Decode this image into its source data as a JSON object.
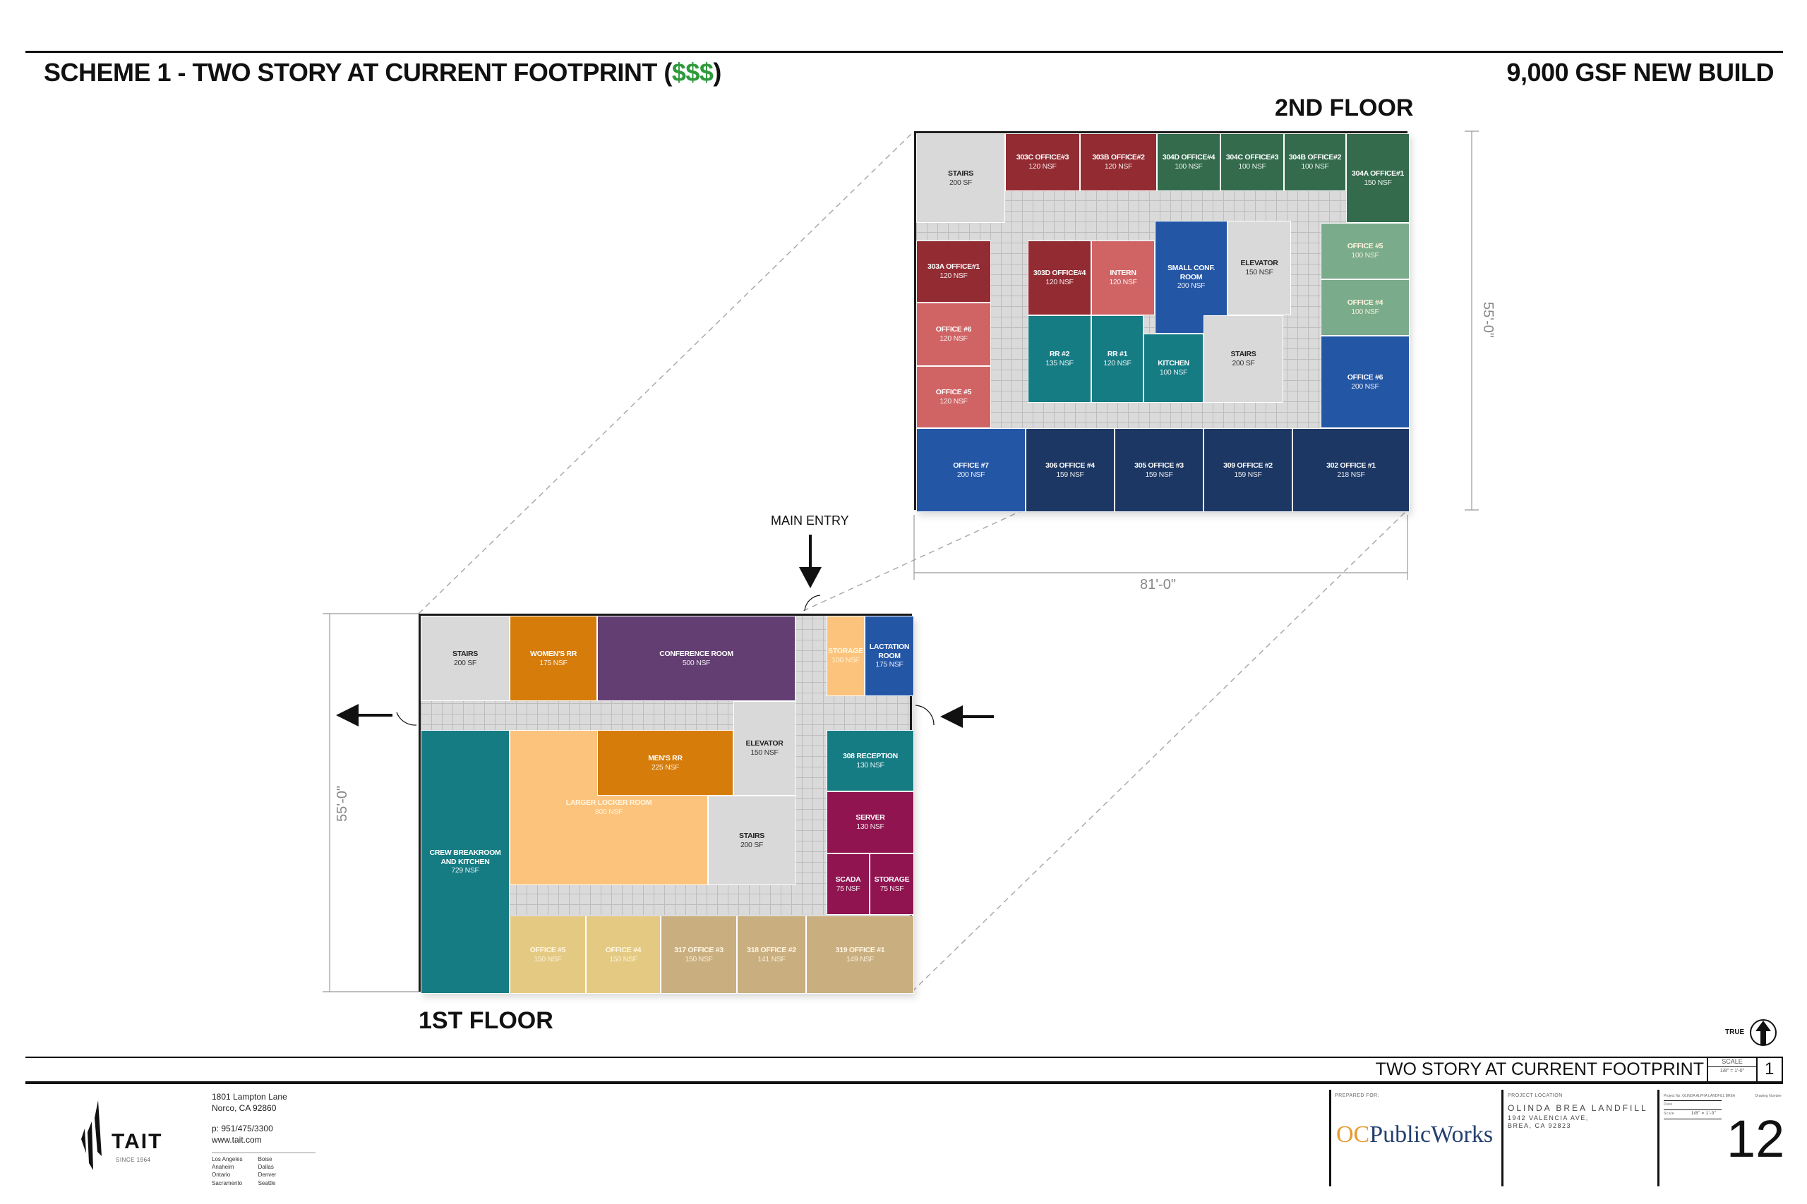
{
  "header": {
    "title_main": "SCHEME 1 - TWO STORY AT CURRENT FOOTPRINT (",
    "title_cost": "$$$",
    "title_close": ")",
    "right_title": "9,000 GSF NEW BUILD"
  },
  "second_floor": {
    "label": "2ND FLOOR",
    "dim_vertical": "55'-0\"",
    "dim_horizontal": "81'-0\"",
    "rooms": [
      {
        "name": "STAIRS",
        "area": "200 SF",
        "color": "#d9d9d9"
      },
      {
        "name": "303C OFFICE#3",
        "area": "120 NSF",
        "color": "#922b32"
      },
      {
        "name": "303B OFFICE#2",
        "area": "120 NSF",
        "color": "#922b32"
      },
      {
        "name": "304D OFFICE#4",
        "area": "100 NSF",
        "color": "#336b4c"
      },
      {
        "name": "304C OFFICE#3",
        "area": "100 NSF",
        "color": "#336b4c"
      },
      {
        "name": "304B OFFICE#2",
        "area": "100 NSF",
        "color": "#336b4c"
      },
      {
        "name": "304A OFFICE#1",
        "area": "150 NSF",
        "color": "#336b4c"
      },
      {
        "name": "303A OFFICE#1",
        "area": "120 NSF",
        "color": "#922b32"
      },
      {
        "name": "OFFICE #6",
        "area": "120 NSF",
        "color": "#d06465"
      },
      {
        "name": "OFFICE #5",
        "area": "120 NSF",
        "color": "#d06465"
      },
      {
        "name": "303D OFFICE#4",
        "area": "120 NSF",
        "color": "#922b32"
      },
      {
        "name": "INTERN",
        "area": "120 NSF",
        "color": "#d06465"
      },
      {
        "name": "SMALL CONF. ROOM",
        "area": "200 NSF",
        "color": "#2456a6"
      },
      {
        "name": "ELEVATOR",
        "area": "150 NSF",
        "color": "#d9d9d9"
      },
      {
        "name": "RR #2",
        "area": "135 NSF",
        "color": "#167c84"
      },
      {
        "name": "RR #1",
        "area": "120 NSF",
        "color": "#167c84"
      },
      {
        "name": "KITCHEN",
        "area": "100 NSF",
        "color": "#167c84"
      },
      {
        "name": "STAIRS",
        "area": "200 SF",
        "color": "#d9d9d9"
      },
      {
        "name": "OFFICE #5",
        "area": "100 NSF",
        "color": "#7aab8a"
      },
      {
        "name": "OFFICE #4",
        "area": "100 NSF",
        "color": "#7aab8a"
      },
      {
        "name": "OFFICE #6",
        "area": "200 NSF",
        "color": "#2456a6"
      },
      {
        "name": "OFFICE #7",
        "area": "200 NSF",
        "color": "#2456a6"
      },
      {
        "name": "306 OFFICE #4",
        "area": "159 NSF",
        "color": "#1c3763"
      },
      {
        "name": "305 OFFICE #3",
        "area": "159 NSF",
        "color": "#1c3763"
      },
      {
        "name": "309 OFFICE #2",
        "area": "159 NSF",
        "color": "#1c3763"
      },
      {
        "name": "302 OFFICE #1",
        "area": "218 NSF",
        "color": "#1c3763"
      }
    ]
  },
  "first_floor": {
    "label": "1ST FLOOR",
    "dim_vertical": "55'-0\"",
    "main_entry": "MAIN ENTRY",
    "rooms": [
      {
        "name": "STAIRS",
        "area": "200 SF",
        "color": "#d9d9d9"
      },
      {
        "name": "WOMEN'S RR",
        "area": "175 NSF",
        "color": "#d67c0a"
      },
      {
        "name": "CONFERENCE ROOM",
        "area": "500 NSF",
        "color": "#623e72"
      },
      {
        "name": "STORAGE",
        "area": "100 NSF",
        "color": "#fcc37c"
      },
      {
        "name": "LACTATION ROOM",
        "area": "175 NSF",
        "color": "#2456a6"
      },
      {
        "name": "CREW BREAKROOM AND KITCHEN",
        "area": "729 NSF",
        "color": "#167c84"
      },
      {
        "name": "LARGER LOCKER ROOM",
        "area": "800 NSF",
        "color": "#fcc37c"
      },
      {
        "name": "MEN'S RR",
        "area": "225 NSF",
        "color": "#d67c0a"
      },
      {
        "name": "ELEVATOR",
        "area": "150 NSF",
        "color": "#d9d9d9"
      },
      {
        "name": "STAIRS",
        "area": "200 SF",
        "color": "#d9d9d9"
      },
      {
        "name": "308 RECEPTION",
        "area": "130 NSF",
        "color": "#167c84"
      },
      {
        "name": "SERVER",
        "area": "130 NSF",
        "color": "#8f1450"
      },
      {
        "name": "SCADA",
        "area": "75 NSF",
        "color": "#8f1450"
      },
      {
        "name": "STORAGE",
        "area": "75 NSF",
        "color": "#8f1450"
      },
      {
        "name": "OFFICE #5",
        "area": "150 NSF",
        "color": "#e4c982"
      },
      {
        "name": "OFFICE #4",
        "area": "150 NSF",
        "color": "#e4c982"
      },
      {
        "name": "317 OFFICE #3",
        "area": "150 NSF",
        "color": "#c9ae80"
      },
      {
        "name": "318 OFFICE #2",
        "area": "141 NSF",
        "color": "#c9ae80"
      },
      {
        "name": "319 OFFICE #1",
        "area": "149 NSF",
        "color": "#c9ae80"
      }
    ]
  },
  "north_arrow": {
    "label": "TRUE"
  },
  "title_block": {
    "drawing_title": "TWO STORY AT CURRENT FOOTPRINT",
    "scale_label": "SCALE",
    "scale_value": "1/8\" = 1'-0\"",
    "detail_number": "1"
  },
  "footer": {
    "company": {
      "name": "TAIT",
      "since": "SINCE 1964",
      "address1": "1801 Lampton Lane",
      "address2": "Norco, CA 92860",
      "phone": "p: 951/475/3300",
      "web": "www.tait.com",
      "offices_col1": [
        "Los Angeles",
        "Anaheim",
        "Ontario",
        "Sacramento"
      ],
      "offices_col2": [
        "Boise",
        "Dallas",
        "Denver",
        "Seattle"
      ]
    },
    "prepared_for_label": "PREPARED FOR:",
    "client_logo_prefix": "OC",
    "client_logo_text": "PublicWorks",
    "project_location_label": "PROJECT LOCATION",
    "project_name": "OLINDA BREA LANDFILL",
    "project_address1": "1942 VALENCIA AVE,",
    "project_address2": "BREA, CA 92823",
    "project_no_label": "Project No.",
    "project_no_value": "OLINDA ALPHA LANDFILL BREA",
    "drawing_number_label": "Drawing Number",
    "date_label": "Date",
    "scale_label": "Scale",
    "scale_value": "1/8\" = 1'-0\"",
    "drawing_number": "12"
  }
}
